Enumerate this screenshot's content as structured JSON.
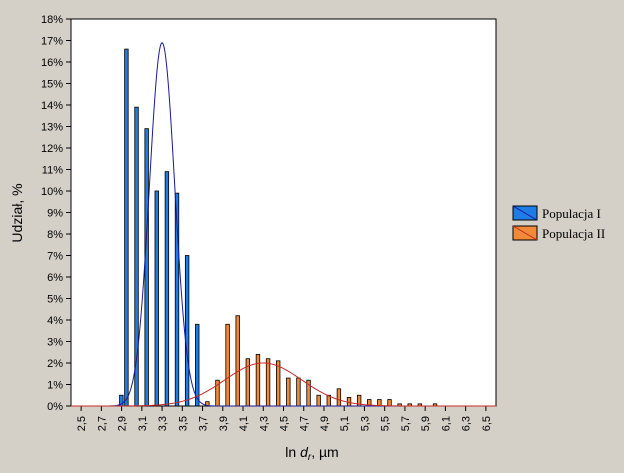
{
  "chart_data": {
    "type": "bar",
    "title": "",
    "xlabel_prefix": "ln",
    "xlabel_italic": "d",
    "xlabel_sub": "r",
    "xlabel_suffix": ", µm",
    "ylabel": "Udział, %",
    "xlim": [
      2.4,
      6.6
    ],
    "ylim": [
      0,
      18
    ],
    "x_ticks": [
      2.5,
      2.7,
      2.9,
      3.1,
      3.3,
      3.5,
      3.7,
      3.9,
      4.1,
      4.3,
      4.5,
      4.7,
      4.9,
      5.1,
      5.3,
      5.5,
      5.7,
      5.9,
      6.1,
      6.3,
      6.5
    ],
    "x_tick_labels": [
      "2,5",
      "2,7",
      "2,9",
      "3,1",
      "3,3",
      "3,5",
      "3,7",
      "3,9",
      "4,1",
      "4,3",
      "4,5",
      "4,7",
      "4,9",
      "5,1",
      "5,3",
      "5,5",
      "5,7",
      "5,9",
      "6,1",
      "6,3",
      "6,5"
    ],
    "y_ticks": [
      0,
      1,
      2,
      3,
      4,
      5,
      6,
      7,
      8,
      9,
      10,
      11,
      12,
      13,
      14,
      15,
      16,
      17,
      18
    ],
    "y_tick_labels": [
      "0%",
      "1%",
      "2%",
      "3%",
      "4%",
      "5%",
      "6%",
      "7%",
      "8%",
      "9%",
      "10%",
      "11%",
      "12%",
      "13%",
      "14%",
      "15%",
      "16%",
      "17%",
      "18%"
    ],
    "legend_position": "right",
    "grid": false,
    "series": [
      {
        "name": "Populacja I",
        "color": "#1e7ce6",
        "curve_color": "#1a1a9a",
        "curve_mean": 3.3,
        "curve_sd": 0.125,
        "curve_peak": 16.9,
        "bars": [
          {
            "x": 2.9,
            "y": 0.5
          },
          {
            "x": 2.95,
            "y": 16.6
          },
          {
            "x": 3.05,
            "y": 13.9
          },
          {
            "x": 3.15,
            "y": 12.9
          },
          {
            "x": 3.25,
            "y": 10.0
          },
          {
            "x": 3.35,
            "y": 10.9
          },
          {
            "x": 3.45,
            "y": 9.9
          },
          {
            "x": 3.55,
            "y": 7.0
          },
          {
            "x": 3.65,
            "y": 3.8
          }
        ]
      },
      {
        "name": "Populacja II",
        "color": "#f08a38",
        "curve_color": "#c82828",
        "curve_mean": 4.3,
        "curve_sd": 0.38,
        "curve_peak": 2.0,
        "bars": [
          {
            "x": 3.75,
            "y": 0.2
          },
          {
            "x": 3.85,
            "y": 1.2
          },
          {
            "x": 3.95,
            "y": 3.8
          },
          {
            "x": 4.05,
            "y": 4.2
          },
          {
            "x": 4.15,
            "y": 2.2
          },
          {
            "x": 4.25,
            "y": 2.4
          },
          {
            "x": 4.35,
            "y": 2.2
          },
          {
            "x": 4.45,
            "y": 2.1
          },
          {
            "x": 4.55,
            "y": 1.3
          },
          {
            "x": 4.65,
            "y": 1.3
          },
          {
            "x": 4.75,
            "y": 1.2
          },
          {
            "x": 4.85,
            "y": 0.5
          },
          {
            "x": 4.95,
            "y": 0.5
          },
          {
            "x": 5.05,
            "y": 0.8
          },
          {
            "x": 5.15,
            "y": 0.4
          },
          {
            "x": 5.25,
            "y": 0.5
          },
          {
            "x": 5.35,
            "y": 0.3
          },
          {
            "x": 5.45,
            "y": 0.3
          },
          {
            "x": 5.55,
            "y": 0.3
          },
          {
            "x": 5.65,
            "y": 0.1
          },
          {
            "x": 5.75,
            "y": 0.1
          },
          {
            "x": 5.85,
            "y": 0.1
          },
          {
            "x": 6.0,
            "y": 0.1
          }
        ]
      }
    ]
  }
}
